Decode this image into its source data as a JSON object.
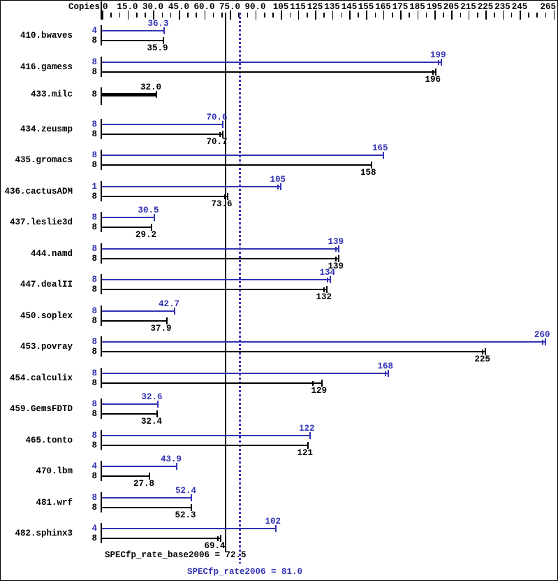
{
  "header": {
    "copies_label": "Copies"
  },
  "footer": {
    "base_metric_label": "SPECfp_rate_base2006 = 72.5",
    "peak_metric_label": "SPECfp_rate2006 = 81.0"
  },
  "chart_data": {
    "type": "bar",
    "orientation": "horizontal",
    "title": "",
    "xlabel": "Copies",
    "ylabel": "",
    "axis": {
      "min": 0,
      "max": 265,
      "minor_tick_step": 5,
      "labeled_ticks": [
        0,
        15,
        30,
        45,
        60,
        75,
        90,
        105,
        115,
        125,
        135,
        145,
        155,
        165,
        175,
        185,
        195,
        205,
        215,
        225,
        235,
        245,
        265
      ],
      "tick_labels": [
        "0",
        "15.0",
        "30.0",
        "45.0",
        "60.0",
        "75.0",
        "90.0",
        "105",
        "115",
        "125",
        "135",
        "145",
        "155",
        "165",
        "175",
        "185",
        "195",
        "205",
        "215",
        "225",
        "235",
        "245",
        "265"
      ]
    },
    "colors": {
      "peak": "#3232b4",
      "base": "#000000"
    },
    "reference_lines": [
      {
        "name": "SPECfp_rate_base2006",
        "value": 72.5,
        "style": "solid",
        "color": "#000000"
      },
      {
        "name": "SPECfp_rate2006",
        "value": 81.0,
        "style": "dotted",
        "color": "#3232b4"
      }
    ],
    "metrics": {
      "SPECfp_rate_base2006": 72.5,
      "SPECfp_rate2006": 81.0
    },
    "benchmarks": [
      {
        "name": "410.bwaves",
        "peak": {
          "copies": "4",
          "value": 36.3,
          "label": "36.3"
        },
        "base": {
          "copies": "8",
          "value": 35.9,
          "label": "35.9"
        }
      },
      {
        "name": "416.gamess",
        "peak": {
          "copies": "8",
          "value": 199,
          "label": "199",
          "double_tick": true
        },
        "base": {
          "copies": "8",
          "value": 196,
          "label": "196",
          "double_tick": true
        }
      },
      {
        "name": "433.milc",
        "single_bar": true,
        "base": {
          "copies": "8",
          "value": 32.0,
          "label": "32.0"
        }
      },
      {
        "name": "434.zeusmp",
        "peak": {
          "copies": "8",
          "value": 70.6,
          "label": "70.6"
        },
        "base": {
          "copies": "8",
          "value": 70.7,
          "label": "70.7",
          "double_tick": true
        }
      },
      {
        "name": "435.gromacs",
        "peak": {
          "copies": "8",
          "value": 165,
          "label": "165"
        },
        "base": {
          "copies": "8",
          "value": 158,
          "label": "158"
        }
      },
      {
        "name": "436.cactusADM",
        "peak": {
          "copies": "1",
          "value": 105,
          "label": "105",
          "double_tick": true
        },
        "base": {
          "copies": "8",
          "value": 73.6,
          "label": "73.6",
          "double_tick": true
        }
      },
      {
        "name": "437.leslie3d",
        "peak": {
          "copies": "8",
          "value": 30.5,
          "label": "30.5"
        },
        "base": {
          "copies": "8",
          "value": 29.2,
          "label": "29.2"
        }
      },
      {
        "name": "444.namd",
        "peak": {
          "copies": "8",
          "value": 139,
          "label": "139",
          "double_tick": true
        },
        "base": {
          "copies": "8",
          "value": 139,
          "label": "139",
          "double_tick": true
        }
      },
      {
        "name": "447.dealII",
        "peak": {
          "copies": "8",
          "value": 134,
          "label": "134",
          "double_tick": true
        },
        "base": {
          "copies": "8",
          "value": 132,
          "label": "132",
          "double_tick": true
        }
      },
      {
        "name": "450.soplex",
        "peak": {
          "copies": "8",
          "value": 42.7,
          "label": "42.7"
        },
        "base": {
          "copies": "8",
          "value": 37.9,
          "label": "37.9"
        }
      },
      {
        "name": "453.povray",
        "peak": {
          "copies": "8",
          "value": 260,
          "label": "260",
          "double_tick": true
        },
        "base": {
          "copies": "8",
          "value": 225,
          "label": "225",
          "double_tick": true
        }
      },
      {
        "name": "454.calculix",
        "peak": {
          "copies": "8",
          "value": 168,
          "label": "168",
          "double_tick": true
        },
        "base": {
          "copies": "8",
          "value": 129,
          "label": "129",
          "double_tick": true,
          "tick_offset": -14
        }
      },
      {
        "name": "459.GemsFDTD",
        "peak": {
          "copies": "8",
          "value": 32.6,
          "label": "32.6"
        },
        "base": {
          "copies": "8",
          "value": 32.4,
          "label": "32.4"
        }
      },
      {
        "name": "465.tonto",
        "peak": {
          "copies": "8",
          "value": 122,
          "label": "122"
        },
        "base": {
          "copies": "8",
          "value": 121,
          "label": "121"
        }
      },
      {
        "name": "470.lbm",
        "peak": {
          "copies": "4",
          "value": 43.9,
          "label": "43.9"
        },
        "base": {
          "copies": "8",
          "value": 27.8,
          "label": "27.8"
        }
      },
      {
        "name": "481.wrf",
        "peak": {
          "copies": "8",
          "value": 52.4,
          "label": "52.4"
        },
        "base": {
          "copies": "8",
          "value": 52.3,
          "label": "52.3"
        }
      },
      {
        "name": "482.sphinx3",
        "peak": {
          "copies": "4",
          "value": 102,
          "label": "102"
        },
        "base": {
          "copies": "8",
          "value": 69.4,
          "label": "69.4",
          "double_tick": true
        }
      }
    ]
  }
}
